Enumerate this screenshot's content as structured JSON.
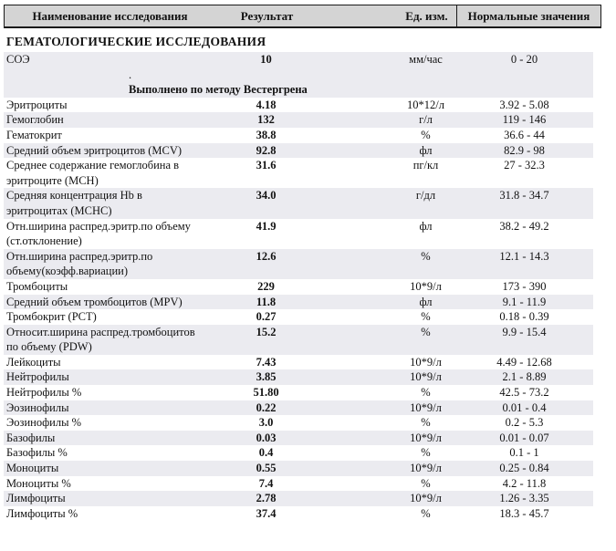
{
  "header": {
    "columns": [
      "Наименование исследования",
      "Результат",
      "Ед. изм.",
      "Нормальные значения"
    ]
  },
  "section_title": "ГЕМАТОЛОГИЧЕСКИЕ ИССЛЕДОВАНИЯ",
  "colors": {
    "stripe": "#ebebf0",
    "header_bg": "#d4d4d4",
    "border": "#1a1a1a"
  },
  "rows": [
    {
      "type": "data",
      "shade": true,
      "name": "СОЭ",
      "name2": "",
      "result": "10",
      "units": "мм/час",
      "normal": "0 - 20"
    },
    {
      "type": "comment",
      "shade": true,
      "bold": false,
      "text": "."
    },
    {
      "type": "comment",
      "shade": true,
      "bold": true,
      "text": "Выполнено по методу Вестергрена"
    },
    {
      "type": "data",
      "shade": false,
      "name": "Эритроциты",
      "name2": "",
      "result": "4.18",
      "units": "10*12/л",
      "normal": "3.92 - 5.08"
    },
    {
      "type": "data",
      "shade": true,
      "name": "Гемоглобин",
      "name2": "",
      "result": "132",
      "units": "г/л",
      "normal": "119 - 146"
    },
    {
      "type": "data",
      "shade": false,
      "name": "Гематокрит",
      "name2": "",
      "result": "38.8",
      "units": "%",
      "normal": "36.6 - 44"
    },
    {
      "type": "data",
      "shade": true,
      "name": "Средний объем эритроцитов (MCV)",
      "name2": "",
      "result": "92.8",
      "units": "фл",
      "normal": "82.9 - 98"
    },
    {
      "type": "data",
      "shade": false,
      "name": "Среднее содержание гемоглобина в",
      "name2": "эритроците (MCH)",
      "result": "31.6",
      "units": "пг/кл",
      "normal": "27 - 32.3"
    },
    {
      "type": "data",
      "shade": true,
      "name": "Средняя концентрация Hb в",
      "name2": "эритроцитах (MCHC)",
      "result": "34.0",
      "units": "г/дл",
      "normal": "31.8 - 34.7"
    },
    {
      "type": "data",
      "shade": false,
      "name": "Отн.ширина распред.эритр.по объему",
      "name2": "(ст.отклонение)",
      "result": "41.9",
      "units": "фл",
      "normal": "38.2 - 49.2"
    },
    {
      "type": "data",
      "shade": true,
      "name": "Отн.ширина распред.эритр.по",
      "name2": "объему(коэфф.вариации)",
      "result": "12.6",
      "units": "%",
      "normal": "12.1 - 14.3"
    },
    {
      "type": "data",
      "shade": false,
      "name": "Тромбоциты",
      "name2": "",
      "result": "229",
      "units": "10*9/л",
      "normal": "173 - 390"
    },
    {
      "type": "data",
      "shade": true,
      "name": "Средний объем тромбоцитов (MPV)",
      "name2": "",
      "result": "11.8",
      "units": "фл",
      "normal": "9.1 - 11.9"
    },
    {
      "type": "data",
      "shade": false,
      "name": "Тромбокрит (PCT)",
      "name2": "",
      "result": "0.27",
      "units": "%",
      "normal": "0.18 - 0.39"
    },
    {
      "type": "data",
      "shade": true,
      "name": "Относит.ширина распред.тромбоцитов",
      "name2": "по объему (PDW)",
      "result": "15.2",
      "units": "%",
      "normal": "9.9 - 15.4"
    },
    {
      "type": "data",
      "shade": false,
      "name": "Лейкоциты",
      "name2": "",
      "result": "7.43",
      "units": "10*9/л",
      "normal": "4.49 - 12.68"
    },
    {
      "type": "data",
      "shade": true,
      "name": "Нейтрофилы",
      "name2": "",
      "result": "3.85",
      "units": "10*9/л",
      "normal": "2.1 - 8.89"
    },
    {
      "type": "data",
      "shade": false,
      "name": "Нейтрофилы %",
      "name2": "",
      "result": "51.80",
      "units": "%",
      "normal": "42.5 - 73.2"
    },
    {
      "type": "data",
      "shade": true,
      "name": "Эозинофилы",
      "name2": "",
      "result": "0.22",
      "units": "10*9/л",
      "normal": "0.01 - 0.4"
    },
    {
      "type": "data",
      "shade": false,
      "name": "Эозинофилы %",
      "name2": "",
      "result": "3.0",
      "units": "%",
      "normal": "0.2 - 5.3"
    },
    {
      "type": "data",
      "shade": true,
      "name": "Базофилы",
      "name2": "",
      "result": "0.03",
      "units": "10*9/л",
      "normal": "0.01 - 0.07"
    },
    {
      "type": "data",
      "shade": false,
      "name": "Базофилы %",
      "name2": "",
      "result": "0.4",
      "units": "%",
      "normal": "0.1 - 1"
    },
    {
      "type": "data",
      "shade": true,
      "name": "Моноциты",
      "name2": "",
      "result": "0.55",
      "units": "10*9/л",
      "normal": "0.25 - 0.84"
    },
    {
      "type": "data",
      "shade": false,
      "name": "Моноциты %",
      "name2": "",
      "result": "7.4",
      "units": "%",
      "normal": "4.2 - 11.8"
    },
    {
      "type": "data",
      "shade": true,
      "name": "Лимфоциты",
      "name2": "",
      "result": "2.78",
      "units": "10*9/л",
      "normal": "1.26 - 3.35"
    },
    {
      "type": "data",
      "shade": false,
      "name": "Лимфоциты %",
      "name2": "",
      "result": "37.4",
      "units": "%",
      "normal": "18.3 - 45.7"
    }
  ]
}
